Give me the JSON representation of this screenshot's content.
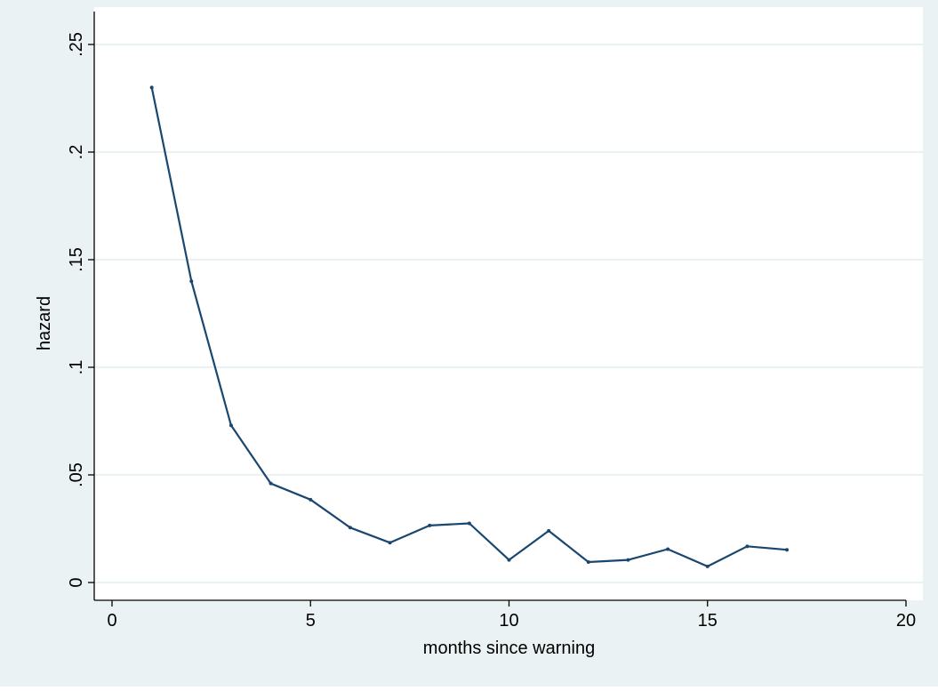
{
  "chart_data": {
    "type": "line",
    "title": "",
    "xlabel": "months since warning",
    "ylabel": "hazard",
    "xlim": [
      0,
      20
    ],
    "ylim": [
      0,
      0.25
    ],
    "x_ticks": [
      "0",
      "5",
      "10",
      "15",
      "20"
    ],
    "y_ticks": [
      "0",
      ".05",
      ".1",
      ".15",
      ".2",
      ".25"
    ],
    "grid": "horizontal",
    "legend": "none",
    "colors": {
      "outer_background": "#eaf2f3",
      "plot_background": "#ffffff",
      "grid": "#eaf2f3",
      "line": "#1a476f"
    },
    "series": [
      {
        "x": [
          1,
          2,
          3,
          4,
          5,
          6,
          7,
          8,
          9,
          10,
          11,
          12,
          13,
          14,
          15,
          16,
          17
        ],
        "values": [
          0.23,
          0.14,
          0.073,
          0.046,
          0.0385,
          0.0255,
          0.0185,
          0.0265,
          0.0275,
          0.0105,
          0.024,
          0.0095,
          0.0105,
          0.0155,
          0.0075,
          0.0168,
          0.0152
        ]
      }
    ]
  }
}
